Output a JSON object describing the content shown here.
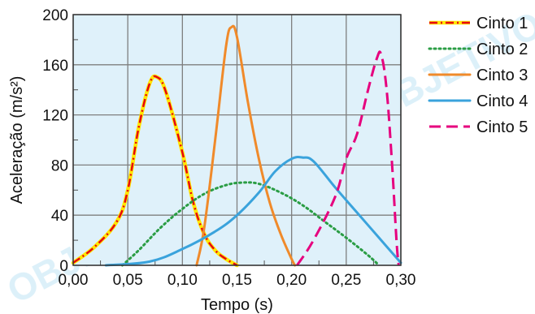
{
  "chart_data": {
    "type": "line",
    "title": "",
    "xlabel": "Tempo (s)",
    "ylabel": "Aceleração (m/s²)",
    "xlim": [
      0,
      0.3
    ],
    "ylim": [
      0,
      200
    ],
    "x_ticks": [
      0,
      0.05,
      0.1,
      0.15,
      0.2,
      0.25,
      0.3
    ],
    "x_tick_labels": [
      "0,00",
      "0,05",
      "0,10",
      "0,15",
      "0,20",
      "0,25",
      "0,30"
    ],
    "y_ticks": [
      0,
      40,
      80,
      120,
      160,
      200
    ],
    "y_tick_labels": [
      "0",
      "40",
      "80",
      "120",
      "160",
      "200"
    ],
    "grid": true,
    "background_color": "#dff1fa",
    "legend_position": "top-right-outside",
    "series": [
      {
        "name": "Cinto 1",
        "color": "#e60012",
        "color2": "#ffe600",
        "style": "dash-dot",
        "points": [
          [
            0,
            2
          ],
          [
            0.02,
            15
          ],
          [
            0.04,
            35
          ],
          [
            0.05,
            60
          ],
          [
            0.06,
            110
          ],
          [
            0.07,
            145
          ],
          [
            0.077,
            150
          ],
          [
            0.085,
            138
          ],
          [
            0.1,
            90
          ],
          [
            0.11,
            50
          ],
          [
            0.12,
            25
          ],
          [
            0.13,
            12
          ],
          [
            0.14,
            5
          ],
          [
            0.15,
            0
          ]
        ]
      },
      {
        "name": "Cinto 2",
        "color": "#2a9d44",
        "style": "dotted",
        "points": [
          [
            0.045,
            0
          ],
          [
            0.06,
            12
          ],
          [
            0.08,
            30
          ],
          [
            0.1,
            45
          ],
          [
            0.12,
            57
          ],
          [
            0.14,
            64
          ],
          [
            0.155,
            66
          ],
          [
            0.17,
            65
          ],
          [
            0.19,
            58
          ],
          [
            0.21,
            48
          ],
          [
            0.23,
            35
          ],
          [
            0.25,
            22
          ],
          [
            0.27,
            8
          ],
          [
            0.28,
            0
          ]
        ]
      },
      {
        "name": "Cinto 3",
        "color": "#f08a2a",
        "style": "solid",
        "points": [
          [
            0.113,
            0
          ],
          [
            0.12,
            30
          ],
          [
            0.13,
            100
          ],
          [
            0.14,
            175
          ],
          [
            0.145,
            190
          ],
          [
            0.15,
            182
          ],
          [
            0.16,
            130
          ],
          [
            0.17,
            85
          ],
          [
            0.18,
            50
          ],
          [
            0.19,
            25
          ],
          [
            0.2,
            5
          ],
          [
            0.203,
            0
          ]
        ]
      },
      {
        "name": "Cinto 4",
        "color": "#3aa3dc",
        "style": "solid",
        "points": [
          [
            0.03,
            0
          ],
          [
            0.07,
            3
          ],
          [
            0.1,
            13
          ],
          [
            0.13,
            27
          ],
          [
            0.15,
            40
          ],
          [
            0.17,
            58
          ],
          [
            0.185,
            75
          ],
          [
            0.2,
            85
          ],
          [
            0.21,
            86
          ],
          [
            0.22,
            83
          ],
          [
            0.24,
            62
          ],
          [
            0.26,
            42
          ],
          [
            0.28,
            22
          ],
          [
            0.3,
            2
          ]
        ]
      },
      {
        "name": "Cinto 5",
        "color": "#e6007e",
        "style": "dashed",
        "points": [
          [
            0.205,
            0
          ],
          [
            0.22,
            20
          ],
          [
            0.24,
            55
          ],
          [
            0.25,
            85
          ],
          [
            0.26,
            105
          ],
          [
            0.27,
            140
          ],
          [
            0.278,
            165
          ],
          [
            0.282,
            168
          ],
          [
            0.287,
            140
          ],
          [
            0.292,
            80
          ],
          [
            0.296,
            20
          ],
          [
            0.298,
            0
          ]
        ]
      }
    ]
  },
  "watermark": "OBJETIVO"
}
